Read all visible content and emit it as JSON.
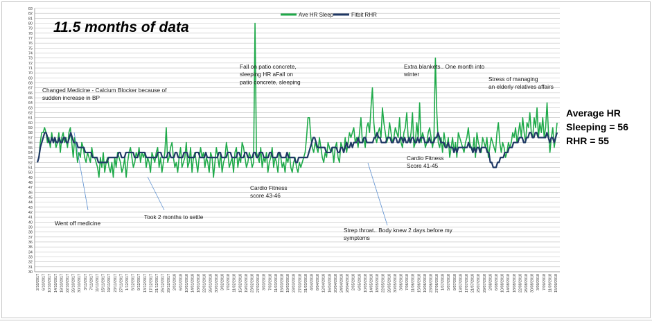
{
  "chart_data": {
    "type": "line",
    "title": "11.5 months of data",
    "legend": {
      "placement": "top-center",
      "entries": [
        "Ave HR Sleep",
        "Fitbit RHR"
      ]
    },
    "colors": {
      "sleep": "#1faa4a",
      "rhr": "#1f3864",
      "grid": "#bfbfbf",
      "annotation": "#5b8fd0"
    },
    "ylim": [
      30,
      83
    ],
    "grid": true,
    "y_ticks": [
      "30",
      "31",
      "32",
      "33",
      "34",
      "35",
      "36",
      "37",
      "38",
      "39",
      "40",
      "41",
      "42",
      "43",
      "44",
      "45",
      "46",
      "47",
      "48",
      "49",
      "50",
      "51",
      "52",
      "53",
      "54",
      "55",
      "56",
      "57",
      "58",
      "59",
      "60",
      "61",
      "62",
      "63",
      "64",
      "65",
      "66",
      "67",
      "68",
      "69",
      "70",
      "71",
      "72",
      "73",
      "74",
      "75",
      "76",
      "77",
      "78",
      "79",
      "80",
      "81",
      "82",
      "83"
    ],
    "x_ticks": [
      "2/10/2017",
      "6/10/2017",
      "10/10/2017",
      "14/10/2017",
      "18/10/2017",
      "22/10/2017",
      "26/10/2017",
      "30/10/2017",
      "3/11/2017",
      "7/11/2017",
      "11/11/2017",
      "15/11/2017",
      "19/11/2017",
      "23/11/2017",
      "27/11/2017",
      "1/12/2017",
      "5/12/2017",
      "9/12/2017",
      "13/12/2017",
      "17/12/2017",
      "21/12/2017",
      "25/12/2017",
      "29/12/2017",
      "2/01/2018",
      "6/01/2018",
      "10/01/2018",
      "14/01/2018",
      "18/01/2018",
      "22/01/2018",
      "26/01/2018",
      "30/01/2018",
      "3/02/2018",
      "7/02/2018",
      "11/02/2018",
      "15/02/2018",
      "19/02/2018",
      "23/02/2018",
      "27/02/2018",
      "3/03/2018",
      "7/03/2018",
      "11/03/2018",
      "15/03/2018",
      "19/03/2018",
      "23/03/2018",
      "27/03/2018",
      "31/03/2018",
      "4/04/2018",
      "8/04/2018",
      "12/04/2018",
      "16/04/2018",
      "20/04/2018",
      "24/04/2018",
      "28/04/2018",
      "2/05/2018",
      "6/05/2018",
      "10/05/2018",
      "14/05/2018",
      "18/05/2018",
      "22/05/2018",
      "26/05/2018",
      "30/05/2018",
      "3/06/2018",
      "7/06/2018",
      "11/06/2018",
      "15/06/2018",
      "19/06/2018",
      "23/06/2018",
      "27/06/2018",
      "1/07/2018",
      "5/07/2018",
      "9/07/2018",
      "13/07/2018",
      "17/07/2018",
      "21/07/2018",
      "25/07/2018",
      "29/07/2018",
      "2/08/2018",
      "6/08/2018",
      "10/08/2018",
      "14/08/2018",
      "18/08/2018",
      "22/08/2018",
      "26/08/2018",
      "30/08/2018",
      "3/09/2018",
      "7/09/2018",
      "11/09/2018",
      "15/09/2018"
    ],
    "x_start": "2/10/2017",
    "series": [
      {
        "name": "Ave HR Sleep",
        "values": [
          52,
          53,
          56,
          58,
          58,
          59,
          58,
          56,
          57,
          55,
          58,
          56,
          57,
          55,
          56,
          58,
          54,
          57,
          58,
          56,
          57,
          55,
          58,
          59,
          56,
          53,
          57,
          55,
          52,
          54,
          53,
          56,
          55,
          53,
          52,
          54,
          53,
          52,
          55,
          53,
          53,
          52,
          51,
          49,
          53,
          51,
          54,
          50,
          52,
          53,
          51,
          50,
          52,
          49,
          53,
          51,
          54,
          53,
          52,
          50,
          51,
          53,
          49,
          52,
          54,
          55,
          53,
          51,
          52,
          54,
          53,
          55,
          52,
          54,
          53,
          54,
          51,
          53,
          52,
          50,
          54,
          53,
          52,
          54,
          55,
          51,
          53,
          50,
          52,
          54,
          59,
          52,
          53,
          55,
          56,
          53,
          51,
          52,
          50,
          53,
          55,
          51,
          52,
          53,
          56,
          51,
          52,
          55,
          50,
          53,
          54,
          52,
          50,
          53,
          55,
          53,
          54,
          51,
          53,
          52,
          50,
          54,
          53,
          49,
          52,
          55,
          53,
          51,
          54,
          50,
          52,
          53,
          56,
          54,
          51,
          52,
          53,
          50,
          54,
          55,
          51,
          53,
          52,
          56,
          55,
          53,
          51,
          52,
          54,
          53,
          51,
          52,
          80,
          54,
          53,
          52,
          55,
          51,
          53,
          52,
          54,
          50,
          52,
          53,
          55,
          51,
          53,
          52,
          50,
          54,
          53,
          51,
          52,
          50,
          53,
          52,
          54,
          51,
          50,
          52,
          53,
          51,
          50,
          52,
          51,
          52,
          53,
          54,
          57,
          61,
          61,
          57,
          55,
          54,
          56,
          55,
          54,
          57,
          55,
          53,
          52,
          54,
          53,
          56,
          55,
          54,
          55,
          52,
          55,
          56,
          53,
          52,
          56,
          55,
          54,
          57,
          54,
          56,
          58,
          57,
          58,
          59,
          56,
          57,
          55,
          58,
          61,
          56,
          57,
          55,
          59,
          60,
          58,
          63,
          67,
          60,
          57,
          56,
          58,
          59,
          57,
          63,
          60,
          58,
          56,
          57,
          60,
          58,
          56,
          57,
          59,
          58,
          57,
          61,
          56,
          55,
          58,
          59,
          62,
          57,
          56,
          58,
          62,
          55,
          56,
          60,
          57,
          64,
          56,
          58,
          57,
          55,
          56,
          58,
          59,
          57,
          55,
          57,
          73,
          62,
          56,
          55,
          57,
          54,
          58,
          56,
          55,
          57,
          53,
          55,
          57,
          54,
          56,
          53,
          58,
          57,
          56,
          55,
          54,
          56,
          57,
          59,
          56,
          55,
          54,
          57,
          53,
          58,
          56,
          55,
          54,
          57,
          56,
          55,
          57,
          53,
          55,
          57,
          56,
          55,
          54,
          58,
          60,
          56,
          54,
          56,
          55,
          53,
          54,
          56,
          55,
          56,
          58,
          57,
          59,
          56,
          58,
          60,
          57,
          61,
          58,
          56,
          60,
          59,
          62,
          58,
          57,
          61,
          59,
          63,
          57,
          60,
          58,
          61,
          57,
          59,
          64,
          58,
          54,
          57,
          59,
          55,
          57,
          60
        ]
      },
      {
        "name": "Fitbit RHR",
        "values": [
          52,
          53,
          55,
          56,
          57,
          58,
          58,
          57,
          56,
          56,
          57,
          56,
          57,
          56,
          56,
          57,
          56,
          56,
          57,
          57,
          56,
          56,
          57,
          58,
          57,
          56,
          56,
          56,
          55,
          55,
          55,
          55,
          55,
          54,
          54,
          54,
          54,
          54,
          53,
          53,
          53,
          53,
          52,
          52,
          52,
          52,
          52,
          52,
          52,
          53,
          53,
          53,
          53,
          53,
          53,
          53,
          54,
          54,
          53,
          53,
          53,
          54,
          54,
          54,
          54,
          54,
          54,
          53,
          53,
          53,
          54,
          54,
          54,
          54,
          54,
          53,
          53,
          53,
          53,
          53,
          53,
          53,
          53,
          54,
          54,
          54,
          53,
          53,
          53,
          53,
          54,
          54,
          53,
          53,
          53,
          54,
          54,
          53,
          53,
          53,
          53,
          54,
          54,
          54,
          53,
          53,
          53,
          53,
          53,
          54,
          54,
          54,
          53,
          53,
          53,
          53,
          54,
          53,
          53,
          53,
          53,
          53,
          53,
          53,
          53,
          54,
          54,
          53,
          53,
          53,
          53,
          54,
          54,
          54,
          53,
          53,
          53,
          53,
          54,
          54,
          53,
          53,
          53,
          54,
          54,
          53,
          53,
          53,
          53,
          54,
          54,
          53,
          53,
          54,
          54,
          54,
          53,
          53,
          53,
          53,
          54,
          54,
          53,
          53,
          53,
          53,
          54,
          54,
          53,
          53,
          53,
          53,
          54,
          53,
          53,
          53,
          53,
          53,
          52,
          52,
          53,
          53,
          53,
          53,
          53,
          53,
          53,
          54,
          55,
          56,
          57,
          57,
          56,
          55,
          55,
          55,
          55,
          55,
          55,
          54,
          54,
          54,
          54,
          55,
          55,
          55,
          55,
          54,
          54,
          55,
          55,
          54,
          55,
          56,
          55,
          55,
          56,
          55,
          56,
          56,
          56,
          57,
          56,
          56,
          56,
          57,
          57,
          56,
          56,
          56,
          56,
          56,
          57,
          57,
          58,
          57,
          57,
          56,
          56,
          56,
          56,
          57,
          57,
          57,
          56,
          56,
          57,
          57,
          56,
          56,
          57,
          57,
          56,
          57,
          56,
          56,
          57,
          56,
          57,
          57,
          56,
          56,
          57,
          56,
          57,
          57,
          57,
          56,
          56,
          56,
          57,
          56,
          56,
          56,
          57,
          57,
          58,
          57,
          56,
          56,
          56,
          55,
          55,
          56,
          55,
          55,
          55,
          54,
          55,
          54,
          55,
          55,
          55,
          55,
          55,
          55,
          55,
          56,
          55,
          55,
          54,
          55,
          54,
          55,
          55,
          54,
          55,
          55,
          55,
          55,
          54,
          54,
          52,
          52,
          51,
          51,
          51,
          52,
          52,
          53,
          53,
          53,
          54,
          54,
          54,
          55,
          55,
          55,
          56,
          56,
          56,
          56,
          57,
          57,
          57,
          56,
          56,
          57,
          57,
          58,
          58,
          57,
          57,
          58,
          58,
          57,
          57,
          57,
          57,
          57,
          57,
          58,
          57,
          56,
          57,
          57,
          56,
          57,
          58
        ]
      }
    ],
    "annotations": [
      {
        "id": "medicine",
        "lines": [
          "Changed Medicine - Calcium Blocker because of",
          "sudden increase in BP"
        ]
      },
      {
        "id": "fall",
        "lines": [
          "Fall on patio concrete,",
          "sleeping HR aFall on",
          "patio concrete, sleeping"
        ]
      },
      {
        "id": "blankets",
        "lines": [
          "Extra blankets.. One month into",
          "winter"
        ]
      },
      {
        "id": "stress",
        "lines": [
          "Stress of managing",
          "an elderly relatives affairs"
        ]
      },
      {
        "id": "cardio2",
        "lines": [
          "Cardio Fitness",
          "Score 41-45"
        ]
      },
      {
        "id": "cardio1",
        "lines": [
          "Cardio Fitness",
          "score 43-46"
        ]
      },
      {
        "id": "settle",
        "lines": [
          "Took 2 months to settle"
        ]
      },
      {
        "id": "wentoff",
        "lines": [
          "Went off medicine"
        ]
      },
      {
        "id": "strep",
        "lines": [
          "Strep throat.. Body knew 2 days before my",
          "symptoms"
        ]
      }
    ],
    "summary": [
      "Average HR",
      "Sleeping = 56",
      "RHR = 55"
    ]
  }
}
